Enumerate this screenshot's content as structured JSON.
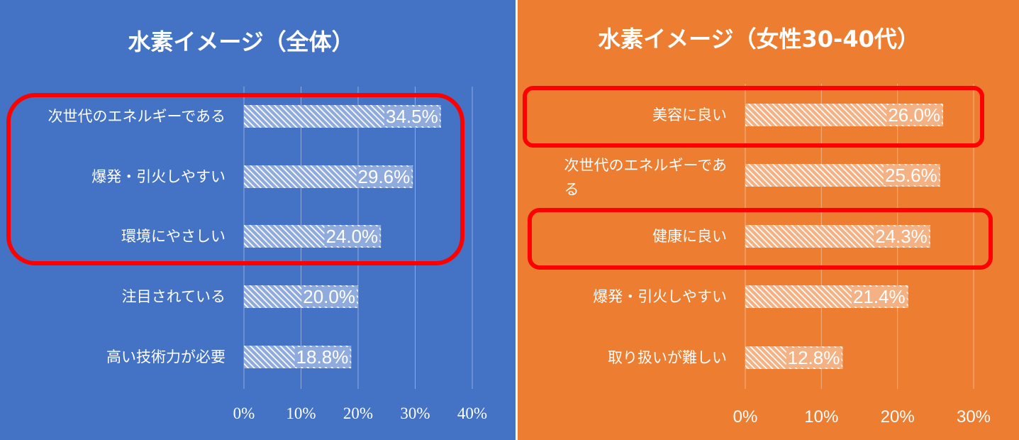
{
  "chart_data": [
    {
      "type": "bar",
      "orientation": "horizontal",
      "title": "水素イメージ（全体）",
      "background": "#4472C4",
      "categories": [
        "次世代のエネルギーである",
        "爆発・引火しやすい",
        "環境にやさしい",
        "注目されている",
        "高い技術力が必要"
      ],
      "values": [
        34.5,
        29.6,
        24.0,
        20.0,
        18.8
      ],
      "value_labels": [
        "34.5%",
        "29.6%",
        "24.0%",
        "20.0%",
        "18.8%"
      ],
      "xlim": [
        0,
        40
      ],
      "ticks": [
        "0%",
        "10%",
        "20%",
        "30%",
        "40%"
      ],
      "grid": true,
      "highlight": {
        "categories": [
          "次世代のエネルギーである",
          "爆発・引火しやすい",
          "環境にやさしい"
        ],
        "color": "#FF0000"
      }
    },
    {
      "type": "bar",
      "orientation": "horizontal",
      "title": "水素イメージ（女性30-40代）",
      "background": "#ED7D31",
      "categories": [
        "美容に良い",
        "次世代のエネルギーである",
        "健康に良い",
        "爆発・引火しやすい",
        "取り扱いが難しい"
      ],
      "values": [
        26.0,
        25.6,
        24.3,
        21.4,
        12.8
      ],
      "value_labels": [
        "26.0%",
        "25.6%",
        "24.3%",
        "21.4%",
        "12.8%"
      ],
      "xlim": [
        0,
        30
      ],
      "ticks": [
        "0%",
        "10%",
        "20%",
        "30%"
      ],
      "grid": true,
      "highlight": {
        "categories": [
          "美容に良い",
          "健康に良い"
        ],
        "color": "#FF0000"
      }
    }
  ]
}
